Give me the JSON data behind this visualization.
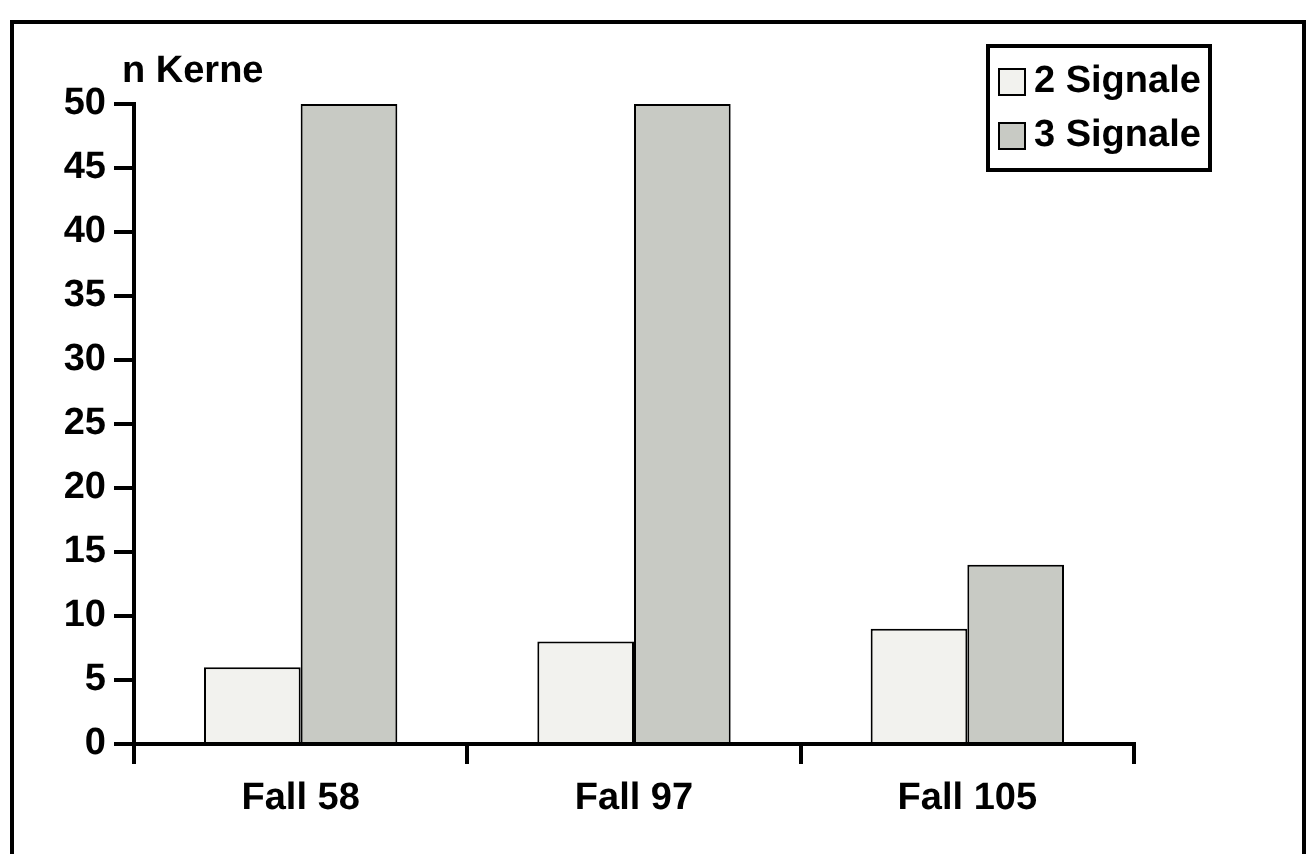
{
  "chart_data": {
    "type": "bar",
    "ylabel": "n Kerne",
    "categories": [
      "Fall 58",
      "Fall 97",
      "Fall 105"
    ],
    "series": [
      {
        "name": "2 Signale",
        "color": "#f2f2ee",
        "values": [
          6,
          8,
          9
        ]
      },
      {
        "name": "3 Signale",
        "color": "#c8cac4",
        "values": [
          50,
          50,
          14
        ]
      }
    ],
    "ylim": [
      0,
      50
    ],
    "yticks": [
      0,
      5,
      10,
      15,
      20,
      25,
      30,
      35,
      40,
      45,
      50
    ],
    "grid": false,
    "legend": "top right"
  }
}
